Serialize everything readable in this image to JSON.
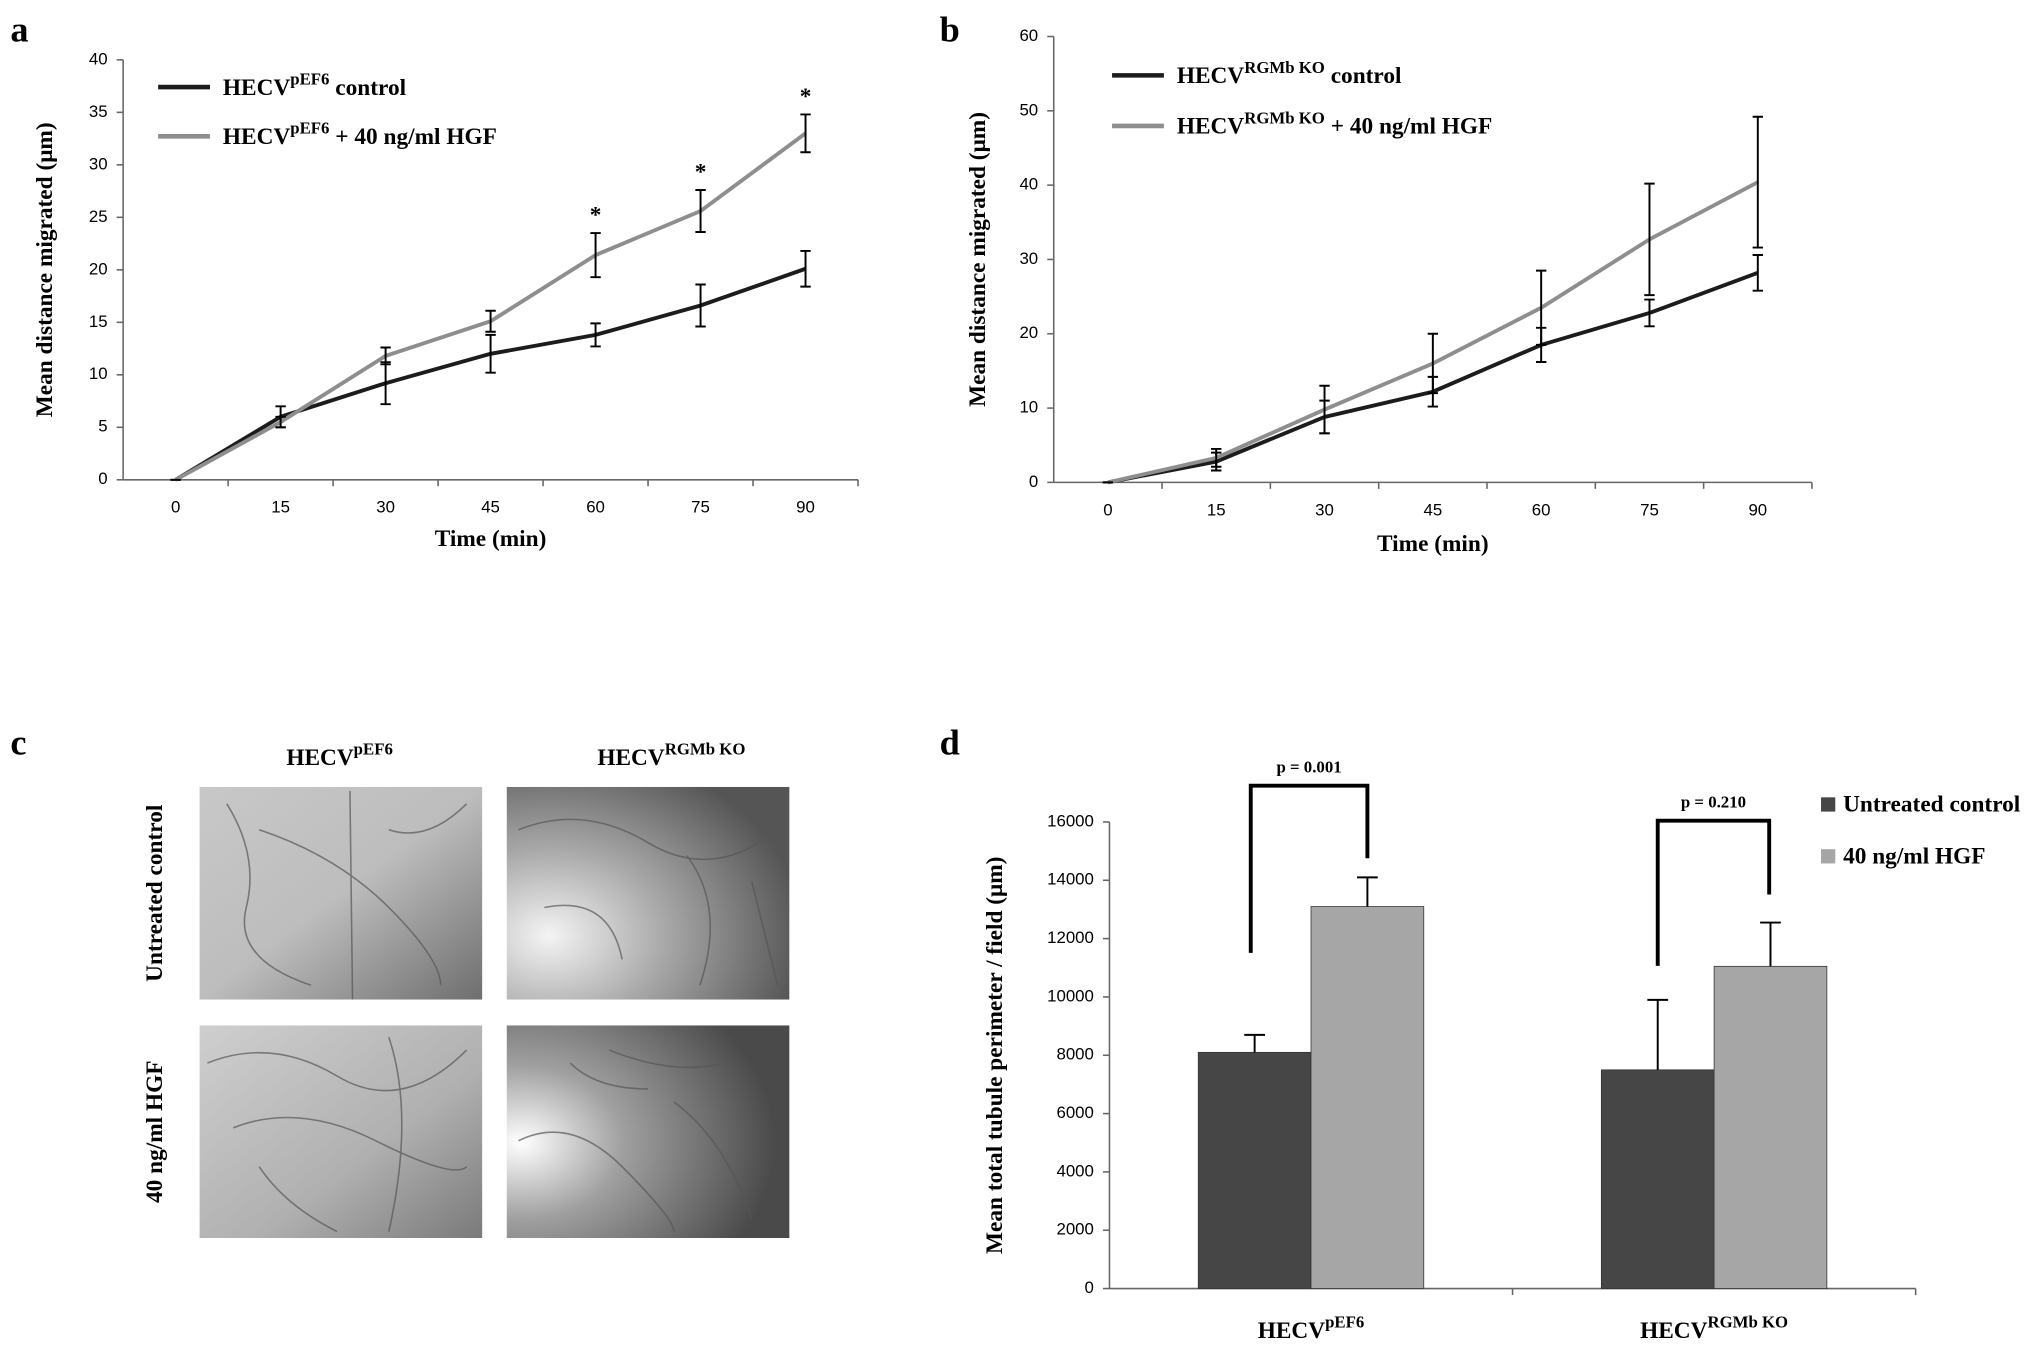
{
  "chart_data": [
    {
      "type": "line",
      "panel": "a",
      "x_label": "Time (min)",
      "y_label": "Mean distance migrated (μm)",
      "categories": [
        0,
        15,
        30,
        45,
        60,
        75,
        90
      ],
      "ylim": [
        0,
        40
      ],
      "yticks": [
        0,
        5,
        10,
        15,
        20,
        25,
        30,
        35,
        40
      ],
      "grid": false,
      "series": [
        {
          "name": {
            "base": "HECV",
            "sup": "pEF6",
            "rest": " control"
          },
          "color": "#1c1c1c",
          "values": [
            0,
            6,
            9.2,
            12,
            13.8,
            16.6,
            20.1
          ],
          "errors": [
            0,
            1,
            2,
            1.8,
            1.1,
            2,
            1.7
          ]
        },
        {
          "name": {
            "base": "HECV",
            "sup": "pEF6",
            "rest": " + 40 ng/ml HGF"
          },
          "color": "#8e8e8e",
          "values": [
            0,
            5.5,
            11.8,
            15.1,
            21.4,
            25.6,
            33
          ],
          "errors": [
            0,
            0.5,
            0.8,
            1,
            2.1,
            2,
            1.8
          ]
        }
      ],
      "annotations": [
        "*",
        "*",
        "*"
      ]
    },
    {
      "type": "line",
      "panel": "b",
      "x_label": "Time (min)",
      "y_label": "Mean distance migrated (μm)",
      "categories": [
        0,
        15,
        30,
        45,
        60,
        75,
        90
      ],
      "ylim": [
        0,
        60
      ],
      "yticks": [
        0,
        10,
        20,
        30,
        40,
        50,
        60
      ],
      "grid": false,
      "series": [
        {
          "name": {
            "base": "HECV",
            "sup": "RGMb KO",
            "rest": " control"
          },
          "color": "#1c1c1c",
          "values": [
            0,
            2.8,
            8.8,
            12.2,
            18.5,
            22.8,
            28.2
          ],
          "errors": [
            0,
            1.2,
            2.2,
            2,
            2.3,
            1.8,
            2.4
          ]
        },
        {
          "name": {
            "base": "HECV",
            "sup": "RGMb KO",
            "rest": " + 40 ng/ml HGF"
          },
          "color": "#8e8e8e",
          "values": [
            0,
            3.3,
            9.8,
            16,
            23.5,
            32.7,
            40.4
          ],
          "errors": [
            0,
            1.2,
            3.2,
            4,
            5,
            7.5,
            8.8
          ]
        }
      ]
    },
    {
      "type": "bar",
      "panel": "d",
      "y_label": "Mean total tubule perimeter / field (μm)",
      "categories": [
        {
          "base": "HECV",
          "sup": "pEF6"
        },
        {
          "base": "HECV",
          "sup": "RGMb KO"
        }
      ],
      "ylim": [
        0,
        16000
      ],
      "yticks": [
        0,
        2000,
        4000,
        6000,
        8000,
        10000,
        12000,
        14000,
        16000
      ],
      "grid": false,
      "series": [
        {
          "name": "Untreated control",
          "color": "#464646",
          "values": [
            8100,
            7500
          ],
          "errors": [
            600,
            2400
          ]
        },
        {
          "name": "40 ng/ml HGF",
          "color": "#a6a6a6",
          "values": [
            13100,
            11050
          ],
          "errors": [
            1000,
            1500
          ]
        }
      ],
      "annotations": [
        "p = 0.001",
        "p = 0.210"
      ]
    }
  ],
  "image_panel": {
    "panel": "c",
    "columns": [
      {
        "base": "HECV",
        "sup": "pEF6"
      },
      {
        "base": "HECV",
        "sup": "RGMb KO"
      }
    ],
    "rows": [
      "Untreated control",
      "40 ng/ml HGF"
    ]
  }
}
